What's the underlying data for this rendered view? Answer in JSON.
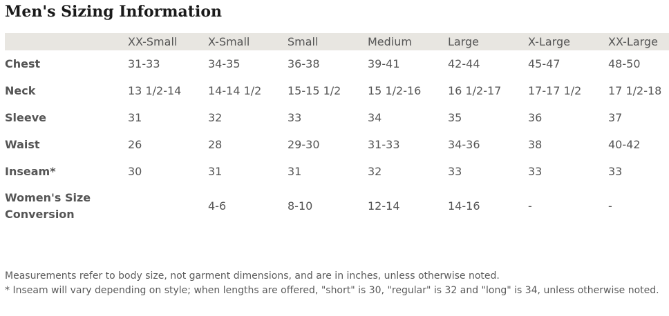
{
  "title": "Men's Sizing Information",
  "columns": [
    "XX-Small",
    "X-Small",
    "Small",
    "Medium",
    "Large",
    "X-Large",
    "XX-Large"
  ],
  "rows": [
    {
      "label": "Chest",
      "values": [
        "31-33",
        "34-35",
        "36-38",
        "39-41",
        "42-44",
        "45-47",
        "48-50"
      ]
    },
    {
      "label": "Neck",
      "values": [
        "13 1/2-14",
        "14-14 1/2",
        "15-15 1/2",
        "15 1/2-16",
        "16 1/2-17",
        "17-17 1/2",
        "17 1/2-18"
      ]
    },
    {
      "label": "Sleeve",
      "values": [
        "31",
        "32",
        "33",
        "34",
        "35",
        "36",
        "37"
      ]
    },
    {
      "label": "Waist",
      "values": [
        "26",
        "28",
        "29-30",
        "31-33",
        "34-36",
        "38",
        "40-42"
      ]
    },
    {
      "label": "Inseam*",
      "values": [
        "30",
        "31",
        "31",
        "32",
        "33",
        "33",
        "33"
      ]
    }
  ],
  "womens_row": {
    "label_line1": "Women's Size",
    "label_line2": "Conversion",
    "values": [
      "",
      "4-6",
      "8-10",
      "12-14",
      "14-16",
      "-",
      "-"
    ]
  },
  "notes": {
    "line1": "Measurements refer to body size, not garment dimensions, and are in inches, unless otherwise noted.",
    "line2": "* Inseam will vary depending on style; when lengths are offered, \"short\" is 30, \"regular\" is 32 and \"long\" is 34, unless otherwise noted."
  }
}
